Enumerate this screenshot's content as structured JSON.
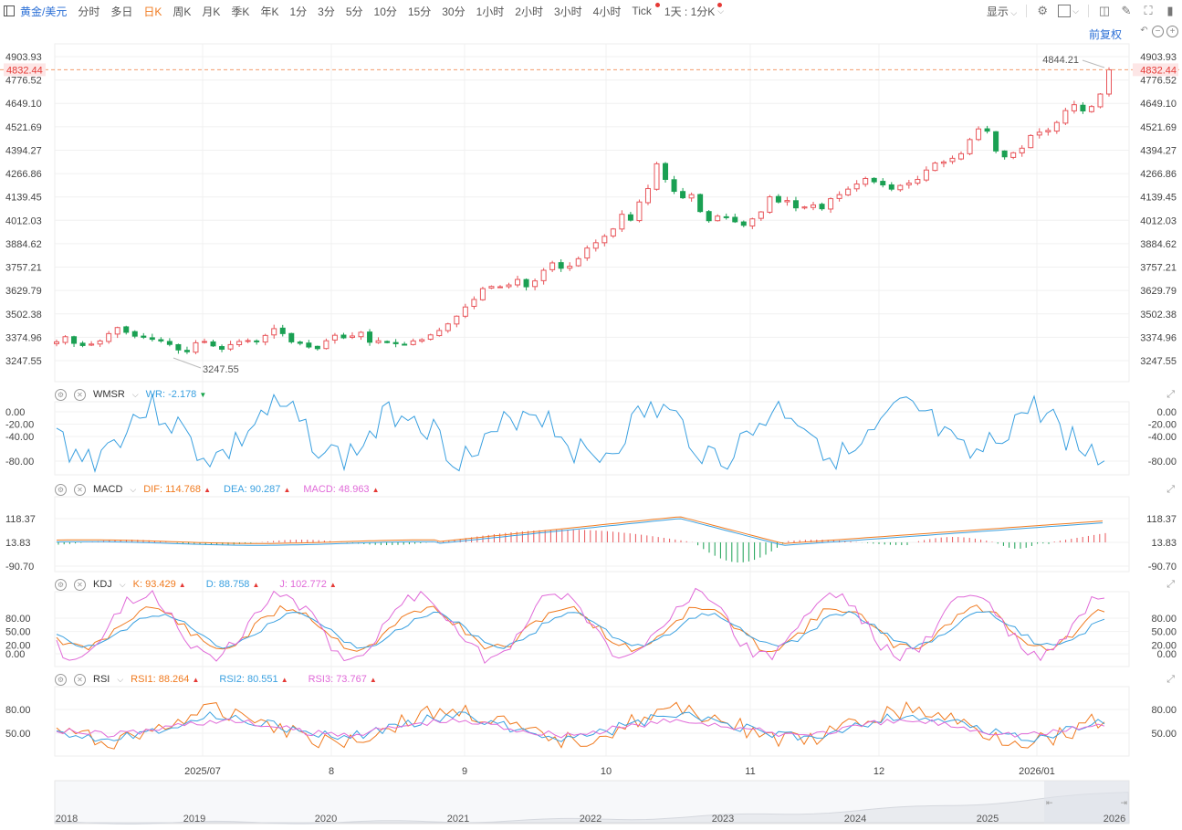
{
  "toolbar": {
    "symbol": "黄金/美元",
    "periods": [
      "分时",
      "多日",
      "日K",
      "周K",
      "月K",
      "季K",
      "年K",
      "1分",
      "3分",
      "5分",
      "10分",
      "15分",
      "30分",
      "1小时",
      "2小时",
      "3小时",
      "4小时",
      "Tick"
    ],
    "active_period": "日K",
    "period_select": "1天 : 1分K",
    "display_label": "显示",
    "adjust_label": "前复权"
  },
  "colors": {
    "up": "#e8555a",
    "down": "#1aa053",
    "accent": "#2b6fd6",
    "orange": "#f07a1f",
    "blue": "#3aa0e0",
    "pink": "#e06ad8"
  },
  "main": {
    "y_ticks": [
      "4903.93",
      "4776.52",
      "4649.10",
      "4521.69",
      "4394.27",
      "4266.86",
      "4139.45",
      "4012.03",
      "3884.62",
      "3757.21",
      "3629.79",
      "3502.38",
      "3374.96",
      "3247.55"
    ],
    "last_price": "4832.44",
    "high_label": "4844.21",
    "low_label": "3247.55"
  },
  "x_labels": [
    "2025/07",
    "8",
    "9",
    "10",
    "11",
    "12",
    "2026/01"
  ],
  "nav_years": [
    "2018",
    "2019",
    "2020",
    "2021",
    "2022",
    "2023",
    "2024",
    "2025",
    "2026"
  ],
  "indicators": {
    "wmsr": {
      "name": "WMSR",
      "wr_label": "WR:",
      "wr_value": "-2.178",
      "y_ticks": [
        "0.00",
        "-20.00",
        "-40.00",
        "-80.00"
      ]
    },
    "macd": {
      "name": "MACD",
      "dif_label": "DIF:",
      "dif_value": "114.768",
      "dea_label": "DEA:",
      "dea_value": "90.287",
      "macd_label": "MACD:",
      "macd_value": "48.963",
      "y_ticks": [
        "118.37",
        "13.83",
        "-90.70"
      ]
    },
    "kdj": {
      "name": "KDJ",
      "k_label": "K:",
      "k_value": "93.429",
      "d_label": "D:",
      "d_value": "88.758",
      "j_label": "J:",
      "j_value": "102.772",
      "y_ticks": [
        "80.00",
        "50.00",
        "20.00",
        "0.00"
      ]
    },
    "rsi": {
      "name": "RSI",
      "rsi1_label": "RSI1:",
      "rsi1_value": "88.264",
      "rsi2_label": "RSI2:",
      "rsi2_value": "80.551",
      "rsi3_label": "RSI3:",
      "rsi3_value": "73.767",
      "y_ticks": [
        "80.00",
        "50.00"
      ]
    }
  },
  "chart_data": {
    "type": "candlestick",
    "ylim": [
      3200,
      4930
    ],
    "closes": [
      3350,
      3378,
      3342,
      3330,
      3338,
      3355,
      3395,
      3428,
      3402,
      3381,
      3375,
      3364,
      3355,
      3336,
      3306,
      3296,
      3345,
      3352,
      3328,
      3310,
      3335,
      3352,
      3357,
      3352,
      3385,
      3422,
      3395,
      3350,
      3342,
      3322,
      3313,
      3356,
      3386,
      3372,
      3382,
      3402,
      3348,
      3356,
      3346,
      3340,
      3337,
      3355,
      3362,
      3388,
      3412,
      3448,
      3490,
      3540,
      3581,
      3640,
      3652,
      3650,
      3660,
      3690,
      3650,
      3682,
      3740,
      3780,
      3751,
      3762,
      3803,
      3861,
      3890,
      3925,
      3965,
      4045,
      4013,
      4112,
      4185,
      4320,
      4235,
      4170,
      4135,
      4152,
      4060,
      4010,
      4035,
      4028,
      4004,
      3985,
      4020,
      4058,
      4140,
      4112,
      4120,
      4080,
      4085,
      4096,
      4075,
      4130,
      4152,
      4182,
      4210,
      4240,
      4222,
      4205,
      4182,
      4202,
      4215,
      4235,
      4286,
      4324,
      4330,
      4350,
      4375,
      4452,
      4510,
      4498,
      4390,
      4358,
      4380,
      4405,
      4474,
      4492,
      4502,
      4545,
      4610,
      4642,
      4608,
      4632,
      4700,
      4832
    ],
    "wr": [
      -2.178
    ],
    "macd": {
      "dif": 114.768,
      "dea": 90.287,
      "macd": 48.963
    },
    "kdj": {
      "k": 93.429,
      "d": 88.758,
      "j": 102.772
    },
    "rsi": {
      "rsi1": 88.264,
      "rsi2": 80.551,
      "rsi3": 73.767
    }
  }
}
